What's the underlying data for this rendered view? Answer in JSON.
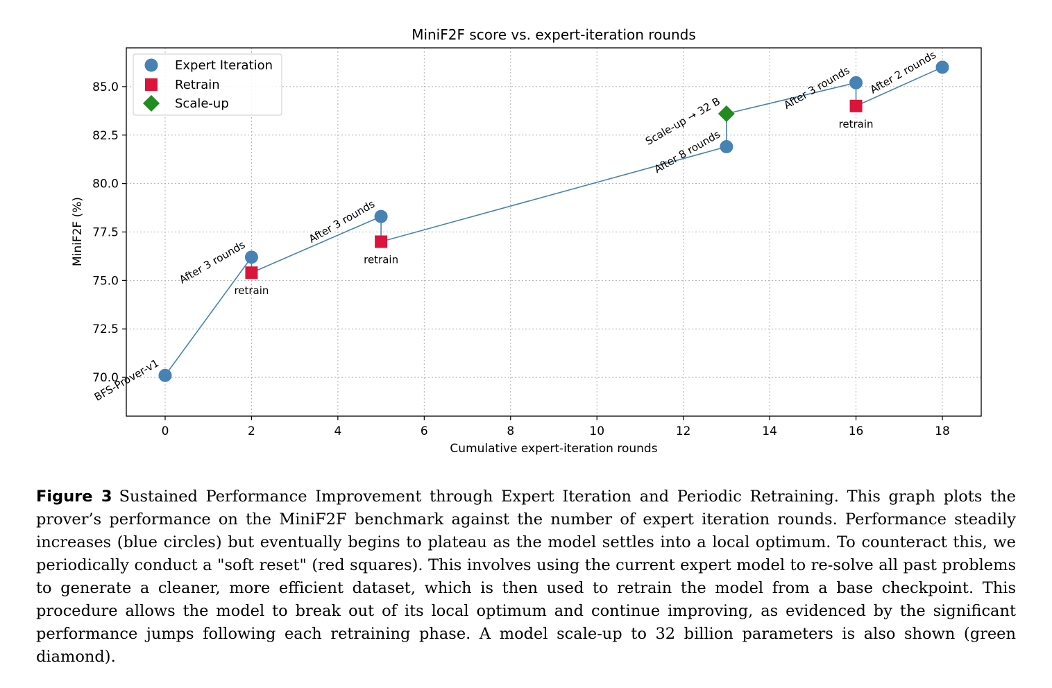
{
  "chart_data": {
    "type": "line",
    "title": "MiniF2F score vs. expert-iteration rounds",
    "xlabel": "Cumulative expert-iteration rounds",
    "ylabel": "MiniF2F (%)",
    "xlim": [
      -0.9,
      18.9
    ],
    "ylim": [
      68.0,
      87.0
    ],
    "xticks": [
      0,
      2,
      4,
      6,
      8,
      10,
      12,
      14,
      16,
      18
    ],
    "yticks": [
      70.0,
      72.5,
      75.0,
      77.5,
      80.0,
      82.5,
      85.0
    ],
    "grid": true,
    "legend_position": "top-left",
    "legend": [
      "Expert Iteration",
      "Retrain",
      "Scale-up"
    ],
    "colors": {
      "line": "#4682b4",
      "expert_iteration": "#4682b4",
      "retrain": "#dc143c",
      "scale_up": "#228b22",
      "grid": "#b0b0b0"
    },
    "path": [
      {
        "x": 0,
        "y": 70.1,
        "kind": "expert"
      },
      {
        "x": 2,
        "y": 76.2,
        "kind": "expert"
      },
      {
        "x": 2,
        "y": 75.4,
        "kind": "retrain"
      },
      {
        "x": 5,
        "y": 78.3,
        "kind": "expert"
      },
      {
        "x": 5,
        "y": 77.0,
        "kind": "retrain"
      },
      {
        "x": 13,
        "y": 81.9,
        "kind": "expert"
      },
      {
        "x": 13,
        "y": 83.6,
        "kind": "scaleup"
      },
      {
        "x": 16,
        "y": 85.2,
        "kind": "expert"
      },
      {
        "x": 16,
        "y": 84.0,
        "kind": "retrain"
      },
      {
        "x": 18,
        "y": 86.0,
        "kind": "expert"
      }
    ],
    "annotations": [
      {
        "x": 0,
        "y": 70.1,
        "text": "BFS-Prover-v1",
        "style": "rotated"
      },
      {
        "x": 2,
        "y": 76.2,
        "text": "After 3 rounds",
        "style": "rotated"
      },
      {
        "x": 2,
        "y": 75.4,
        "text": "retrain",
        "style": "below"
      },
      {
        "x": 5,
        "y": 78.3,
        "text": "After 3 rounds",
        "style": "rotated"
      },
      {
        "x": 5,
        "y": 77.0,
        "text": "retrain",
        "style": "below"
      },
      {
        "x": 13,
        "y": 81.9,
        "text": "After 8 rounds",
        "style": "rotated"
      },
      {
        "x": 13,
        "y": 83.6,
        "text": "Scale-up → 32 B",
        "style": "rotated"
      },
      {
        "x": 16,
        "y": 85.2,
        "text": "After 3 rounds",
        "style": "rotated"
      },
      {
        "x": 16,
        "y": 84.0,
        "text": "retrain",
        "style": "below"
      },
      {
        "x": 18,
        "y": 86.0,
        "text": "After 2 rounds",
        "style": "rotated"
      }
    ]
  },
  "caption": {
    "label": "Figure 3",
    "text": "Sustained Performance Improvement through Expert Iteration and Periodic Retraining. This graph plots the prover’s performance on the MiniF2F benchmark against the number of expert iteration rounds. Performance steadily increases (blue circles) but eventually begins to plateau as the model settles into a local optimum. To counteract this, we periodically conduct a \"soft reset\" (red squares). This involves using the current expert model to re-solve all past problems to generate a cleaner, more efficient dataset, which is then used to retrain the model from a base checkpoint. This procedure allows the model to break out of its local optimum and continue improving, as evidenced by the significant performance jumps following each retraining phase. A model scale-up to 32 billion parameters is also shown (green diamond)."
  }
}
